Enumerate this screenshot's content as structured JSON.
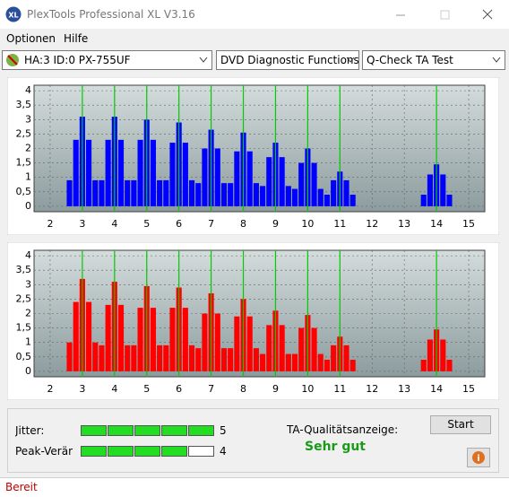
{
  "window": {
    "title": "PlexTools Professional XL V3.16"
  },
  "menu": [
    "Optionen",
    "Hilfe"
  ],
  "toolbar": {
    "drive": "HA:3 ID:0  PX-755UF",
    "function": "DVD Diagnostic Functions",
    "test": "Q-Check TA Test"
  },
  "chart_data": [
    {
      "type": "bar",
      "color": "#0000ff",
      "marker_color": "#00cc00",
      "grid": true,
      "xlim": [
        1.5,
        15.5
      ],
      "ylim": [
        -0.19,
        4.19
      ],
      "xticks": [
        2,
        3,
        4,
        5,
        6,
        7,
        8,
        9,
        10,
        11,
        12,
        13,
        14,
        15
      ],
      "yticks": [
        0,
        {
          "value": 0.5,
          "label": "0,5"
        },
        1,
        {
          "value": 1.5,
          "label": "1,5"
        },
        2,
        {
          "value": 2.5,
          "label": "2,5"
        },
        3,
        {
          "value": 3.5,
          "label": "3,5"
        },
        4
      ],
      "markers": [
        3,
        4,
        5,
        6,
        7,
        8,
        9,
        10,
        11,
        14
      ],
      "x": [
        2.6,
        2.8,
        3,
        3.2,
        3.4,
        3.6,
        3.8,
        4,
        4.2,
        4.4,
        4.6,
        4.8,
        5,
        5.2,
        5.4,
        5.6,
        5.8,
        6,
        6.2,
        6.4,
        6.6,
        6.8,
        7,
        7.2,
        7.4,
        7.6,
        7.8,
        8,
        8.2,
        8.4,
        8.6,
        8.8,
        9,
        9.2,
        9.4,
        9.6,
        9.8,
        10,
        10.2,
        10.4,
        10.6,
        10.8,
        11,
        11.2,
        11.4,
        11.6,
        11.8,
        12,
        12.2,
        12.4,
        12.6,
        12.8,
        13,
        13.2,
        13.4,
        13.6,
        13.8,
        14,
        14.2,
        14.4
      ],
      "values": [
        0.9,
        2.3,
        3.1,
        2.3,
        0.9,
        0.9,
        2.3,
        3.1,
        2.3,
        0.9,
        0.9,
        2.3,
        3.0,
        2.3,
        0.9,
        0.9,
        2.2,
        2.9,
        2.2,
        0.9,
        0.8,
        2.0,
        2.65,
        2.0,
        0.8,
        0.8,
        1.9,
        2.55,
        1.9,
        0.8,
        0.7,
        1.7,
        2.2,
        1.7,
        0.7,
        0.6,
        1.5,
        2.0,
        1.5,
        0.6,
        0.4,
        0.9,
        1.2,
        0.9,
        0.4,
        0,
        0,
        0,
        0,
        0,
        0,
        0,
        0,
        0,
        0,
        0.4,
        1.1,
        1.45,
        1.1,
        0.4
      ]
    },
    {
      "type": "bar",
      "color": "#ff0000",
      "marker_color": "#00cc00",
      "grid": true,
      "xlim": [
        1.5,
        15.5
      ],
      "ylim": [
        -0.19,
        4.19
      ],
      "xticks": [
        2,
        3,
        4,
        5,
        6,
        7,
        8,
        9,
        10,
        11,
        12,
        13,
        14,
        15
      ],
      "yticks": [
        0,
        {
          "value": 0.5,
          "label": "0,5"
        },
        1,
        {
          "value": 1.5,
          "label": "1,5"
        },
        2,
        {
          "value": 2.5,
          "label": "2,5"
        },
        3,
        {
          "value": 3.5,
          "label": "3,5"
        },
        4
      ],
      "markers": [
        3,
        4,
        5,
        6,
        7,
        8,
        9,
        10,
        11,
        14
      ],
      "x": [
        2.6,
        2.8,
        3,
        3.2,
        3.4,
        3.6,
        3.8,
        4,
        4.2,
        4.4,
        4.6,
        4.8,
        5,
        5.2,
        5.4,
        5.6,
        5.8,
        6,
        6.2,
        6.4,
        6.6,
        6.8,
        7,
        7.2,
        7.4,
        7.6,
        7.8,
        8,
        8.2,
        8.4,
        8.6,
        8.8,
        9,
        9.2,
        9.4,
        9.6,
        9.8,
        10,
        10.2,
        10.4,
        10.6,
        10.8,
        11,
        11.2,
        11.4,
        11.6,
        11.8,
        12,
        12.2,
        12.4,
        12.6,
        12.8,
        13,
        13.2,
        13.4,
        13.6,
        13.8,
        14,
        14.2,
        14.4
      ],
      "values": [
        1.0,
        2.4,
        3.2,
        2.4,
        1.0,
        0.9,
        2.3,
        3.1,
        2.3,
        0.9,
        0.9,
        2.2,
        2.95,
        2.2,
        0.9,
        0.9,
        2.2,
        2.9,
        2.2,
        0.9,
        0.8,
        2.0,
        2.7,
        2.0,
        0.8,
        0.8,
        1.9,
        2.5,
        1.9,
        0.8,
        0.6,
        1.6,
        2.1,
        1.6,
        0.6,
        0.6,
        1.5,
        1.95,
        1.5,
        0.6,
        0.4,
        0.9,
        1.2,
        0.9,
        0.4,
        0,
        0,
        0,
        0,
        0,
        0,
        0,
        0,
        0,
        0,
        0.4,
        1.1,
        1.45,
        1.1,
        0.4
      ]
    }
  ],
  "panel": {
    "meters": [
      {
        "label": "Jitter:",
        "value": 5,
        "segments": 5
      },
      {
        "label": "Peak-Veränd",
        "value": 4,
        "segments": 5
      }
    ],
    "quality_label": "TA-Qualitätsanzeige:",
    "quality": "Sehr gut",
    "start": "Start"
  },
  "status": "Bereit"
}
